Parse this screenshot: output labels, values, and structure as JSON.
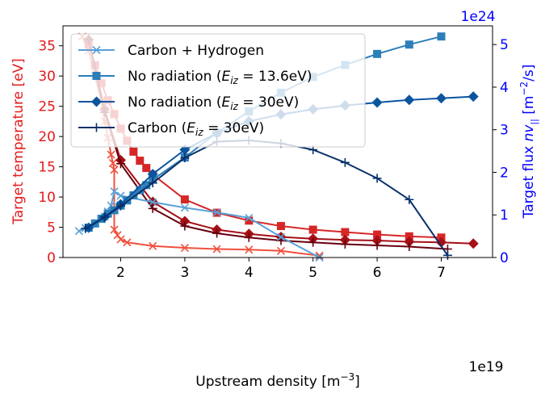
{
  "chart_data": {
    "type": "line",
    "xlabel_text": "Upstream density [m",
    "xlabel_sup": "−3",
    "xlabel_close": "]",
    "x_offset_label": "1e19",
    "ylabel_left": "Target temperature [eV]",
    "ylabel_right_text": "Target flux ",
    "ylabel_right_var": "nv",
    "ylabel_right_sub": "||",
    "ylabel_right_unit": " [m",
    "ylabel_right_sup": "−2",
    "ylabel_right_close": "/s]",
    "y_right_offset_label": "1e24",
    "xlim": [
      1.1,
      7.8
    ],
    "ylim_left": [
      0,
      38.3
    ],
    "ylim_right": [
      0,
      5.44
    ],
    "x_ticks": [
      2,
      3,
      4,
      5,
      6,
      7
    ],
    "y_left_ticks": [
      0,
      5,
      10,
      15,
      20,
      25,
      30,
      35
    ],
    "y_right_ticks": [
      0,
      1,
      2,
      3,
      4,
      5
    ],
    "grid": false,
    "legend_position": "upper-left",
    "colors": {
      "left_axis": "#e41a1c",
      "right_axis": "#0000ff",
      "temp_carbon_hydrogen": "#f0503c",
      "temp_no_rad_13": "#d62728",
      "temp_no_rad_30": "#a50f15",
      "temp_carbon_30": "#67000d",
      "flux_carbon_hydrogen": "#5aa0d6",
      "flux_no_rad_13": "#2c7fb8",
      "flux_no_rad_30": "#0b559f",
      "flux_carbon_30": "#08306b"
    },
    "legend": [
      {
        "prefix": "Carbon + Hydrogen",
        "mid": "",
        "sub": "",
        "suffix": "",
        "color": "#5aa0d6",
        "marker": "x"
      },
      {
        "prefix": "No radiation (",
        "mid": "E",
        "sub": "iz",
        "suffix": " = 13.6eV)",
        "color": "#2c7fb8",
        "marker": "s"
      },
      {
        "prefix": "No radiation (",
        "mid": "E",
        "sub": "iz",
        "suffix": " = 30eV)",
        "color": "#0b559f",
        "marker": "D"
      },
      {
        "prefix": "Carbon (",
        "mid": "E",
        "sub": "iz",
        "suffix": " = 30eV)",
        "color": "#08306b",
        "marker": "+"
      }
    ],
    "series": [
      {
        "name": "Carbon + Hydrogen",
        "quantity": "temperature",
        "axis": "left",
        "color": "#f0503c",
        "marker": "x",
        "x": [
          1.4,
          1.5,
          1.6,
          1.7,
          1.75,
          1.8,
          1.85,
          1.88,
          1.9,
          1.9,
          1.9,
          1.95,
          2.0,
          2.1,
          2.5,
          3.0,
          3.5,
          4.0,
          4.5,
          5.1
        ],
        "y": [
          36.5,
          34.2,
          30.0,
          25.8,
          22.5,
          19.8,
          17.0,
          15.6,
          14.5,
          8.0,
          4.6,
          3.7,
          3.0,
          2.5,
          1.9,
          1.6,
          1.4,
          1.3,
          1.1,
          0.3
        ]
      },
      {
        "name": "No radiation (E_iz = 13.6eV)",
        "quantity": "temperature",
        "axis": "left",
        "color": "#d62728",
        "marker": "s",
        "x": [
          1.5,
          1.6,
          1.7,
          1.8,
          1.9,
          2.0,
          2.1,
          2.2,
          2.3,
          2.4,
          2.5,
          3.0,
          3.5,
          4.0,
          4.5,
          5.0,
          5.5,
          6.0,
          6.5,
          7.0
        ],
        "y": [
          35.2,
          31.8,
          28.8,
          26.0,
          23.7,
          21.3,
          19.3,
          17.5,
          16.0,
          14.8,
          13.7,
          9.6,
          7.4,
          6.1,
          5.2,
          4.6,
          4.2,
          3.8,
          3.5,
          3.3
        ]
      },
      {
        "name": "No radiation (E_iz = 30eV)",
        "quantity": "temperature",
        "axis": "left",
        "color": "#a50f15",
        "marker": "D",
        "x": [
          1.5,
          1.75,
          2.0,
          2.5,
          3.0,
          3.5,
          4.0,
          4.5,
          5.0,
          5.5,
          6.0,
          6.5,
          7.0,
          7.5
        ],
        "y": [
          36.0,
          24.5,
          16.1,
          9.2,
          6.0,
          4.6,
          3.9,
          3.4,
          3.1,
          2.9,
          2.8,
          2.6,
          2.5,
          2.3
        ]
      },
      {
        "name": "Carbon (E_iz = 30eV)",
        "quantity": "temperature",
        "axis": "left",
        "color": "#67000d",
        "marker": "+",
        "x": [
          1.5,
          1.75,
          2.0,
          2.5,
          3.0,
          3.5,
          4.0,
          4.5,
          5.0,
          5.5,
          6.0,
          6.5,
          7.1
        ],
        "y": [
          36.0,
          24.0,
          15.5,
          8.1,
          5.2,
          4.0,
          3.3,
          2.8,
          2.5,
          2.2,
          2.0,
          1.8,
          1.4
        ]
      },
      {
        "name": "Carbon + Hydrogen",
        "quantity": "flux",
        "axis": "right",
        "color": "#5aa0d6",
        "marker": "x",
        "x": [
          1.35,
          1.45,
          1.6,
          1.7,
          1.75,
          1.8,
          1.85,
          1.9,
          2.0,
          2.5,
          3.0,
          3.5,
          4.0,
          4.5,
          5.1
        ],
        "y": [
          0.62,
          0.69,
          0.8,
          0.9,
          0.96,
          1.08,
          1.22,
          1.55,
          1.45,
          1.3,
          1.17,
          1.06,
          0.93,
          0.48,
          0.0
        ]
      },
      {
        "name": "No radiation (E_iz = 13.6eV)",
        "quantity": "flux",
        "axis": "right",
        "color": "#2c7fb8",
        "marker": "s",
        "x": [
          1.5,
          1.6,
          1.7,
          1.8,
          1.9,
          2.0,
          2.1,
          2.2,
          2.3,
          2.4,
          2.5,
          3.0,
          3.5,
          4.0,
          4.5,
          5.0,
          5.5,
          6.0,
          6.5,
          7.0
        ],
        "y": [
          0.7,
          0.8,
          0.91,
          1.03,
          1.11,
          1.22,
          1.34,
          1.46,
          1.58,
          1.7,
          1.83,
          2.35,
          2.93,
          3.43,
          3.87,
          4.24,
          4.52,
          4.78,
          5.0,
          5.19
        ]
      },
      {
        "name": "No radiation (E_iz = 30eV)",
        "quantity": "flux",
        "axis": "right",
        "color": "#0b559f",
        "marker": "D",
        "x": [
          1.5,
          1.75,
          2.0,
          2.5,
          3.0,
          3.5,
          4.0,
          4.5,
          5.0,
          5.5,
          6.0,
          6.5,
          7.0,
          7.5
        ],
        "y": [
          0.7,
          0.95,
          1.25,
          1.96,
          2.53,
          2.92,
          3.2,
          3.36,
          3.48,
          3.57,
          3.64,
          3.7,
          3.74,
          3.78
        ]
      },
      {
        "name": "Carbon (E_iz = 30eV)",
        "quantity": "flux",
        "axis": "right",
        "color": "#08306b",
        "marker": "+",
        "x": [
          1.45,
          1.75,
          2.0,
          2.5,
          3.0,
          3.5,
          4.0,
          4.5,
          5.0,
          5.5,
          6.0,
          6.5,
          7.1
        ],
        "y": [
          0.68,
          0.95,
          1.21,
          1.75,
          2.34,
          2.72,
          2.75,
          2.68,
          2.53,
          2.23,
          1.86,
          1.36,
          0.05
        ]
      }
    ]
  }
}
